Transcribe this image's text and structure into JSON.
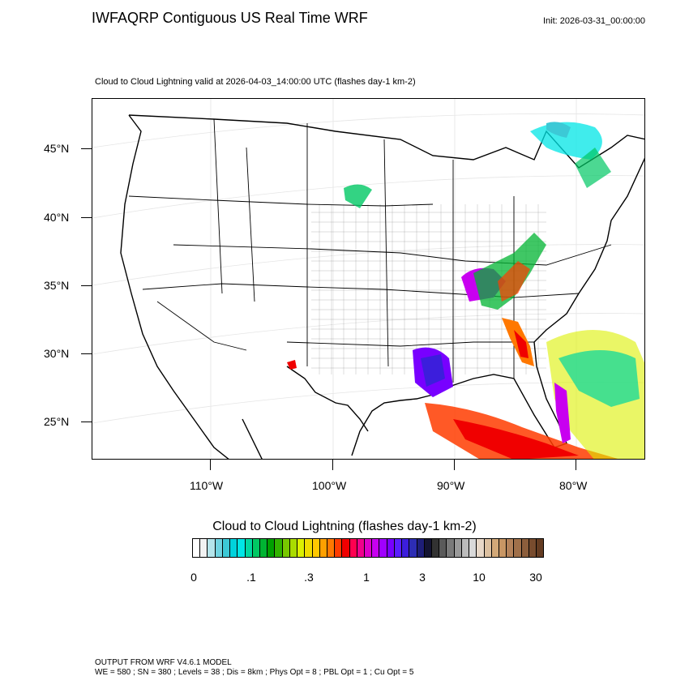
{
  "header": {
    "title": "IWFAQRP Contiguous US Real Time WRF",
    "init": "Init: 2026-03-31_00:00:00",
    "subtitle": "Cloud to Cloud Lightning valid at 2026-04-03_14:00:00 UTC   (flashes day-1 km-2)"
  },
  "map": {
    "lat_labels": [
      "45°N",
      "40°N",
      "35°N",
      "30°N",
      "25°N"
    ],
    "lon_labels": [
      "110°W",
      "100°W",
      "90°W",
      "80°W"
    ]
  },
  "colorbar": {
    "title": "Cloud to Cloud Lightning  (flashes day-1 km-2)",
    "labels": [
      "0",
      ".1",
      ".3",
      "1",
      "3",
      "10",
      "30"
    ],
    "colors": [
      "#ffffff",
      "#f2f2f2",
      "#b4e4ea",
      "#6fd3e0",
      "#3cc9d6",
      "#00d2dc",
      "#00e6e6",
      "#00d7a0",
      "#00c864",
      "#00b432",
      "#00a000",
      "#32b400",
      "#78c800",
      "#aadc00",
      "#dcf000",
      "#f0dc00",
      "#ffc800",
      "#ffa000",
      "#ff7800",
      "#ff3c00",
      "#f00000",
      "#ff0050",
      "#f0008c",
      "#dc00c8",
      "#c800f0",
      "#a000ff",
      "#7800ff",
      "#5a1eff",
      "#3c1edc",
      "#2d2db4",
      "#1e1e78",
      "#141432",
      "#323232",
      "#5a5a5a",
      "#7a7a7a",
      "#9a9a9a",
      "#bcbcbc",
      "#d9d9d9",
      "#e8d8c8",
      "#dcc0a0",
      "#d2a878",
      "#c89664",
      "#b4825a",
      "#a0704a",
      "#8c5e3c",
      "#784c2e",
      "#643c22"
    ]
  },
  "footer": {
    "line1": "OUTPUT FROM WRF V4.6.1 MODEL",
    "line2": "WE = 580 ; SN = 380 ; Levels = 38 ; Dis = 8km ; Phys Opt = 8 ; PBL Opt = 1 ; Cu Opt = 5"
  }
}
